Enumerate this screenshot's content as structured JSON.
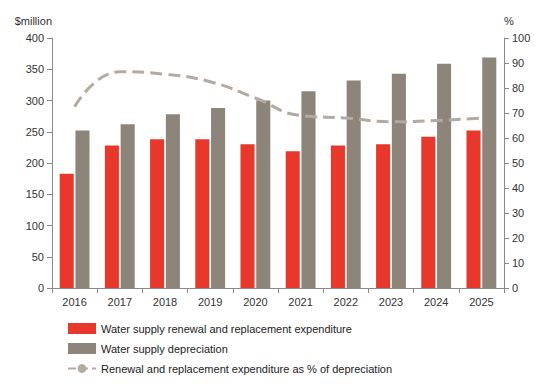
{
  "chart_data": {
    "type": "bar",
    "categories": [
      "2016",
      "2017",
      "2018",
      "2019",
      "2020",
      "2021",
      "2022",
      "2023",
      "2024",
      "2025"
    ],
    "ylabel": "$million",
    "y2label": "%",
    "ylim": [
      0,
      400
    ],
    "yticks": [
      0,
      50,
      100,
      150,
      200,
      250,
      300,
      350,
      400
    ],
    "y2lim": [
      0,
      100
    ],
    "y2ticks": [
      0,
      10,
      20,
      30,
      40,
      50,
      60,
      70,
      80,
      90,
      100
    ],
    "grid": false,
    "legend": "bottom left",
    "series": [
      {
        "name": "Water supply renewal and replacement expenditure",
        "type": "bar",
        "color": "#e8382c",
        "values": [
          183,
          228,
          238,
          238,
          230,
          219,
          228,
          230,
          242,
          252
        ]
      },
      {
        "name": "Water supply depreciation",
        "type": "bar",
        "color": "#8d8579",
        "values": [
          252,
          262,
          278,
          288,
          300,
          315,
          332,
          343,
          359,
          369
        ]
      },
      {
        "name": "Renewal and replacement expenditure as % of depreciation",
        "type": "line",
        "axis": "y2",
        "color": "#b3aba1",
        "line_style": "dashed",
        "values": [
          72.5,
          86.5,
          85.5,
          82.5,
          76,
          69,
          68,
          66.5,
          67,
          68
        ]
      }
    ]
  }
}
